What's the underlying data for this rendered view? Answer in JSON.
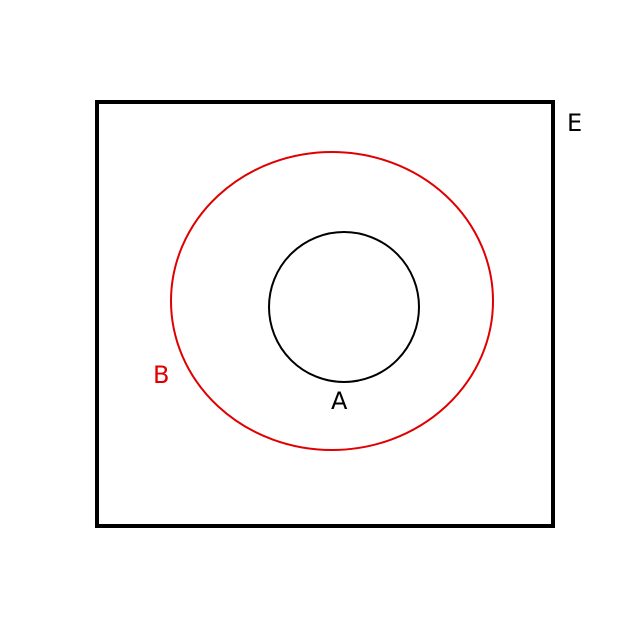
{
  "diagram": {
    "type": "venn-subset",
    "universe": {
      "label": "E",
      "color": "#000000"
    },
    "sets": [
      {
        "id": "outer",
        "label": "B",
        "color": "#e00000",
        "contains": [
          "inner"
        ]
      },
      {
        "id": "inner",
        "label": "A",
        "color": "#000000",
        "contains": []
      }
    ],
    "relation": "A ⊂ B ⊂ E"
  }
}
